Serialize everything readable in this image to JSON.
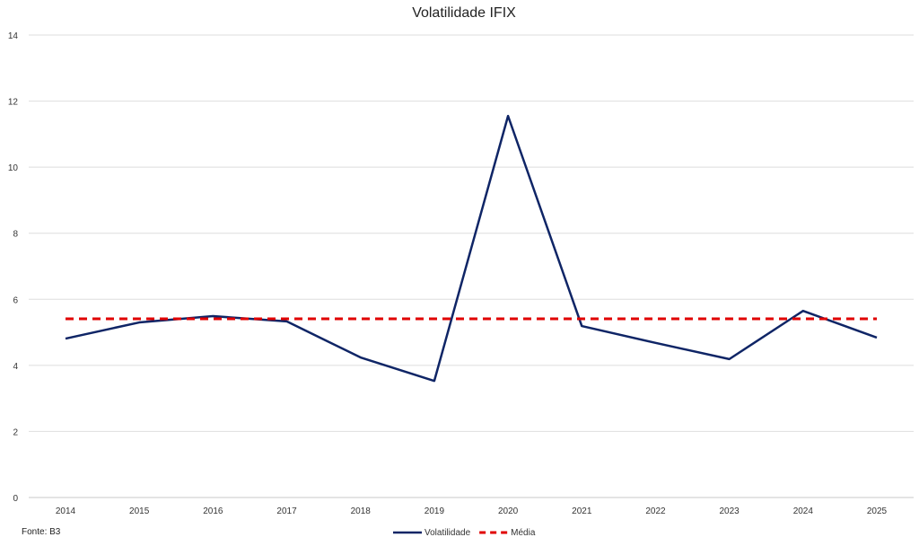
{
  "chart_data": {
    "type": "line",
    "title": "Volatilidade IFIX",
    "xlabel": "",
    "ylabel": "",
    "categories": [
      "2014",
      "2015",
      "2016",
      "2017",
      "2018",
      "2019",
      "2020",
      "2021",
      "2022",
      "2023",
      "2024",
      "2025"
    ],
    "series": [
      {
        "name": "Volatilidade",
        "color": "#0f2566",
        "style": "solid",
        "values": [
          4.81,
          5.3,
          5.49,
          5.33,
          4.24,
          3.53,
          11.55,
          5.19,
          4.68,
          4.19,
          5.65,
          4.84
        ]
      },
      {
        "name": "Média",
        "color": "#e00000",
        "style": "dashed",
        "values": [
          5.41,
          5.41,
          5.41,
          5.41,
          5.41,
          5.41,
          5.41,
          5.41,
          5.41,
          5.41,
          5.41,
          5.41
        ]
      }
    ],
    "ylim": [
      0,
      14
    ],
    "yticks": [
      0,
      2,
      4,
      6,
      8,
      10,
      12,
      14
    ],
    "grid": true,
    "legend": "bottom-center"
  },
  "source": "Fonte: B3"
}
